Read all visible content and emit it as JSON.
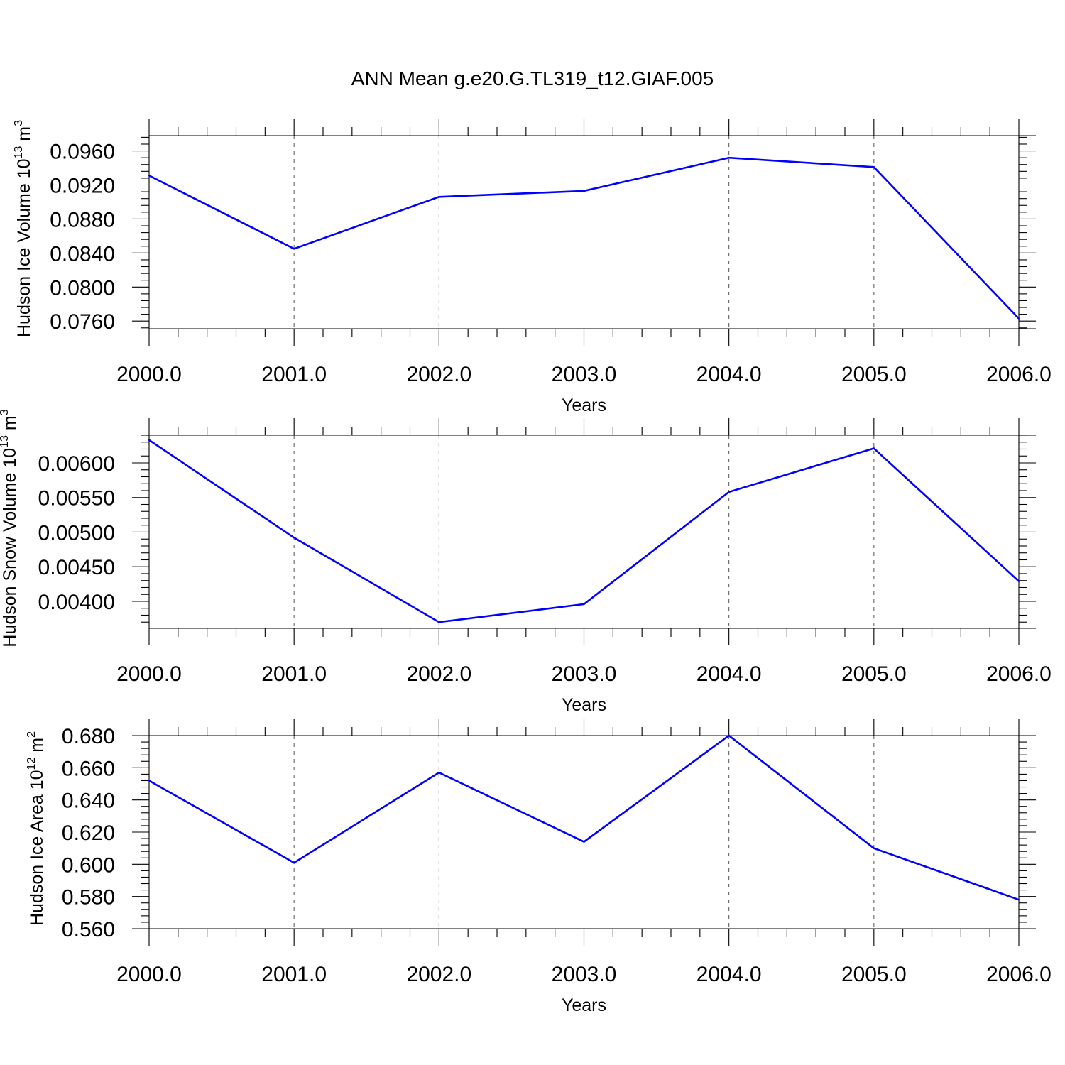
{
  "title": "ANN Mean g.e20.G.TL319_t12.GIAF.005",
  "colors": {
    "series": "#0000ff",
    "axis": "#000000",
    "grid": "#555555"
  },
  "chart_data": [
    {
      "type": "line",
      "ylabel_main": "Hudson Ice Volume 10",
      "ylabel_exp": "13",
      "ylabel_unit": " m",
      "ylabel_unit_exp": "3",
      "xlabel": "Years",
      "x": [
        2000,
        2001,
        2002,
        2003,
        2004,
        2005,
        2006
      ],
      "y": [
        0.0931,
        0.0845,
        0.0906,
        0.0913,
        0.0952,
        0.0941,
        0.0763
      ],
      "xlim": [
        2000,
        2006
      ],
      "ylim": [
        0.0751,
        0.0978
      ],
      "yticks": [
        0.076,
        0.08,
        0.084,
        0.088,
        0.092,
        0.096
      ],
      "ytick_labels": [
        "0.0760",
        "0.0800",
        "0.0840",
        "0.0880",
        "0.0920",
        "0.0960"
      ],
      "xticks": [
        2000,
        2001,
        2002,
        2003,
        2004,
        2005,
        2006
      ],
      "xtick_labels": [
        "2000.0",
        "2001.0",
        "2002.0",
        "2003.0",
        "2004.0",
        "2005.0",
        "2006.0"
      ],
      "grid": "vertical-dashed"
    },
    {
      "type": "line",
      "ylabel_main": "Hudson Snow Volume 10",
      "ylabel_exp": "13",
      "ylabel_unit": " m",
      "ylabel_unit_exp": "3",
      "xlabel": "Years",
      "x": [
        2000,
        2001,
        2002,
        2003,
        2004,
        2005,
        2006
      ],
      "y": [
        0.00633,
        0.00492,
        0.0037,
        0.00396,
        0.00558,
        0.00621,
        0.00429
      ],
      "xlim": [
        2000,
        2006
      ],
      "ylim": [
        0.00361,
        0.0064
      ],
      "yticks": [
        0.004,
        0.0045,
        0.005,
        0.0055,
        0.006
      ],
      "ytick_labels": [
        "0.00400",
        "0.00450",
        "0.00500",
        "0.00550",
        "0.00600"
      ],
      "xticks": [
        2000,
        2001,
        2002,
        2003,
        2004,
        2005,
        2006
      ],
      "xtick_labels": [
        "2000.0",
        "2001.0",
        "2002.0",
        "2003.0",
        "2004.0",
        "2005.0",
        "2006.0"
      ],
      "grid": "vertical-dashed"
    },
    {
      "type": "line",
      "ylabel_main": "Hudson Ice Area 10",
      "ylabel_exp": "12",
      "ylabel_unit": " m",
      "ylabel_unit_exp": "2",
      "xlabel": "Years",
      "x": [
        2000,
        2001,
        2002,
        2003,
        2004,
        2005,
        2006
      ],
      "y": [
        0.652,
        0.601,
        0.657,
        0.614,
        0.68,
        0.61,
        0.578
      ],
      "xlim": [
        2000,
        2006
      ],
      "ylim": [
        0.56,
        0.68
      ],
      "yticks": [
        0.56,
        0.58,
        0.6,
        0.62,
        0.64,
        0.66,
        0.68
      ],
      "ytick_labels": [
        "0.560",
        "0.580",
        "0.600",
        "0.620",
        "0.640",
        "0.660",
        "0.680"
      ],
      "xticks": [
        2000,
        2001,
        2002,
        2003,
        2004,
        2005,
        2006
      ],
      "xtick_labels": [
        "2000.0",
        "2001.0",
        "2002.0",
        "2003.0",
        "2004.0",
        "2005.0",
        "2006.0"
      ],
      "grid": "vertical-dashed"
    }
  ]
}
